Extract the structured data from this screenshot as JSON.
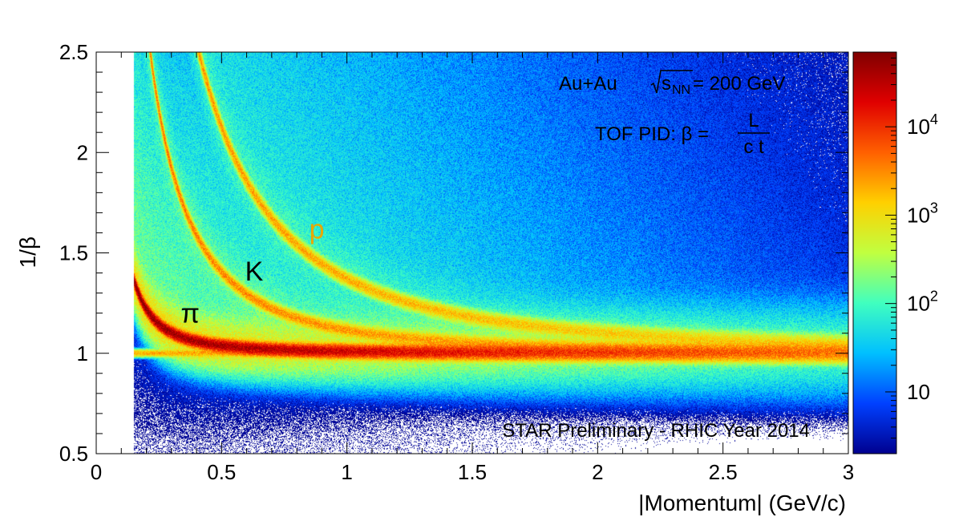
{
  "chart_data": {
    "type": "heatmap",
    "title": "",
    "xlabel": "|Momentum| (GeV/c)",
    "ylabel": "1/β",
    "xlim": [
      0,
      3
    ],
    "ylim": [
      0.5,
      2.5
    ],
    "x_ticks": [
      "0",
      "0.5",
      "1",
      "1.5",
      "2",
      "2.5",
      "3"
    ],
    "y_ticks": [
      "0.5",
      "1",
      "1.5",
      "2",
      "2.5"
    ],
    "z_scale": "log",
    "z_range": [
      2,
      70000
    ],
    "colorbar_ticks": [
      {
        "value": 10,
        "base": "10",
        "exp": ""
      },
      {
        "value": 100,
        "base": "10",
        "exp": "2"
      },
      {
        "value": 1000,
        "base": "10",
        "exp": "3"
      },
      {
        "value": 10000,
        "base": "10",
        "exp": "4"
      }
    ],
    "colormap": [
      "#00008f",
      "#0040ff",
      "#00c0ff",
      "#40ffbf",
      "#c0ff40",
      "#ffd000",
      "#ff6000",
      "#e00000",
      "#800000"
    ],
    "grid": false,
    "p_min": 0.15,
    "bands": [
      {
        "label": "π",
        "mass": 0.1396,
        "label_p": 0.375,
        "label_invbeta": 1.2,
        "label_color": "#000000"
      },
      {
        "label": "K",
        "mass": 0.4937,
        "label_p": 0.63,
        "label_invbeta": 1.41,
        "label_color": "#000000"
      },
      {
        "label": "p",
        "mass": 0.9383,
        "label_p": 0.88,
        "label_invbeta": 1.62,
        "label_color": "#e8a800"
      }
    ],
    "electron_band": {
      "invbeta": 1.0
    }
  },
  "annotations": {
    "line1": {
      "prefix": "Au+Au ",
      "root": "s",
      "sub": "NN",
      "suffix": " = 200 GeV"
    },
    "line2": {
      "prefix": "TOF PID: β = ",
      "numerator": "L",
      "denominator": "c t"
    },
    "footer": "STAR Preliminary - RHIC Year 2014"
  }
}
